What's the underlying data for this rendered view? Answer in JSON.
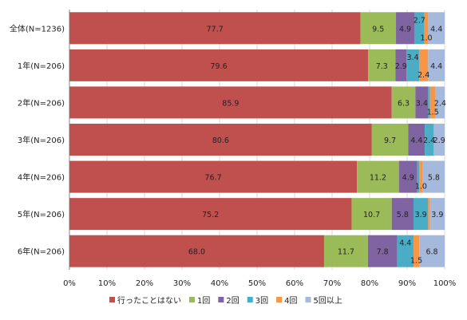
{
  "chart_data": {
    "type": "bar",
    "orientation": "horizontal",
    "stacked": true,
    "normalized": true,
    "categories": [
      "全体(N=1236)",
      "1年(N=206)",
      "2年(N=206)",
      "3年(N=206)",
      "4年(N=206)",
      "5年(N=206)",
      "6年(N=206)"
    ],
    "series": [
      {
        "name": "行ったことはない",
        "color": "#C0504D",
        "values": [
          77.7,
          79.6,
          85.9,
          80.6,
          76.7,
          75.2,
          68.0
        ]
      },
      {
        "name": "1回",
        "color": "#9BBB59",
        "values": [
          9.5,
          7.3,
          6.3,
          9.7,
          11.2,
          10.7,
          11.7
        ]
      },
      {
        "name": "2回",
        "color": "#8064A2",
        "values": [
          4.9,
          2.9,
          3.4,
          4.4,
          4.9,
          5.8,
          7.8
        ]
      },
      {
        "name": "3回",
        "color": "#4BACC6",
        "values": [
          2.7,
          3.4,
          0.5,
          2.4,
          0.5,
          3.9,
          4.4
        ]
      },
      {
        "name": "4回",
        "color": "#F79646",
        "values": [
          1.0,
          2.4,
          1.5,
          0.0,
          1.0,
          0.5,
          1.5
        ]
      },
      {
        "name": "5回以上",
        "color": "#A5B9DD",
        "values": [
          4.4,
          4.4,
          2.4,
          2.9,
          5.8,
          3.9,
          6.8
        ]
      }
    ],
    "labels": [
      [
        "77.7",
        "9.5",
        "4.9",
        "2.7",
        "1.0",
        "4.4"
      ],
      [
        "79.6",
        "7.3",
        "2.9",
        "3.4",
        "2.4",
        "4.4"
      ],
      [
        "85.9",
        "6.3",
        "3.4",
        "",
        "1.5",
        "2.4"
      ],
      [
        "80.6",
        "9.7",
        "4.4",
        "2.4",
        "",
        "2.9"
      ],
      [
        "76.7",
        "11.2",
        "4.9",
        "",
        "1.0",
        "5.8"
      ],
      [
        "75.2",
        "10.7",
        "5.8",
        "3.9",
        "",
        "3.9"
      ],
      [
        "68.0",
        "11.7",
        "7.8",
        "4.4",
        "1.5",
        "6.8"
      ]
    ],
    "x_ticks": [
      "0%",
      "10%",
      "20%",
      "30%",
      "40%",
      "50%",
      "60%",
      "70%",
      "80%",
      "90%",
      "100%"
    ],
    "xlim": [
      0,
      100
    ],
    "grid": true,
    "legend_position": "bottom"
  }
}
